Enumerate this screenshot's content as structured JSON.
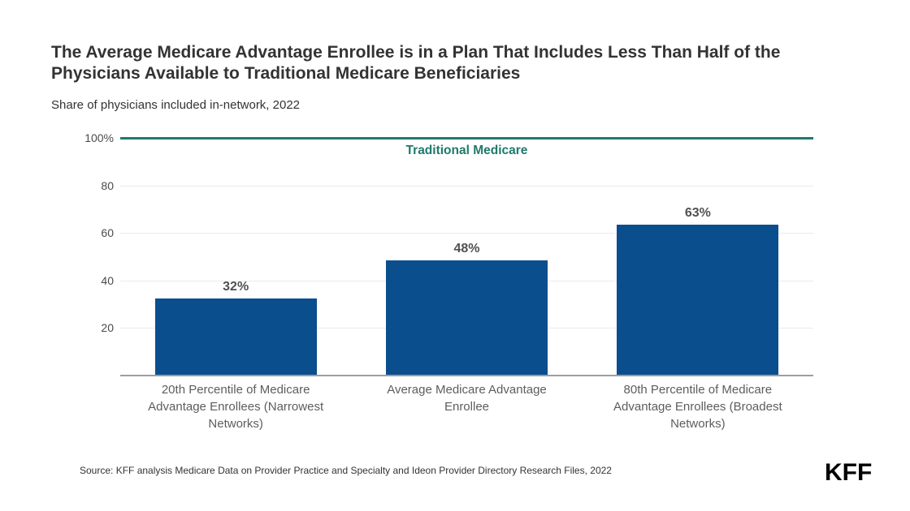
{
  "header": {
    "title": "The Average Medicare Advantage Enrollee is in a Plan That Includes Less Than Half of the Physicians Available to Traditional Medicare Beneficiaries",
    "subtitle": "Share of physicians included in-network, 2022"
  },
  "footer": {
    "source": "Source: KFF analysis Medicare Data on Provider Practice and Specialty and Ideon Provider Directory Research Files, 2022",
    "logo": "KFF"
  },
  "chart_data": {
    "type": "bar",
    "title": "The Average Medicare Advantage Enrollee is in a Plan That Includes Less Than Half of the Physicians Available to Traditional Medicare Beneficiaries",
    "subtitle": "Share of physicians included in-network, 2022",
    "categories": [
      "20th Percentile of Medicare Advantage Enrollees (Narrowest Networks)",
      "Average Medicare Advantage Enrollee",
      "80th Percentile of Medicare Advantage Enrollees (Broadest Networks)"
    ],
    "values": [
      32,
      48,
      63
    ],
    "value_labels": [
      "32%",
      "48%",
      "63%"
    ],
    "xlabel": "",
    "ylabel": "",
    "ylim": [
      0,
      100
    ],
    "grid": true,
    "yticks": [
      {
        "value": 100,
        "label": "100%"
      },
      {
        "value": 80,
        "label": "80"
      },
      {
        "value": 60,
        "label": "60"
      },
      {
        "value": 40,
        "label": "40"
      },
      {
        "value": 20,
        "label": "20"
      }
    ],
    "reference_line": {
      "value": 100,
      "label": "Traditional Medicare"
    },
    "colors": {
      "bar": "#0b4e8d",
      "reference": "#1e7a6b",
      "gridline": "#ebebeb",
      "baseline": "#9e9e9e",
      "value_label": "#515151",
      "tick_label": "#4a4a4a",
      "category_label": "#5d5d5d"
    }
  }
}
